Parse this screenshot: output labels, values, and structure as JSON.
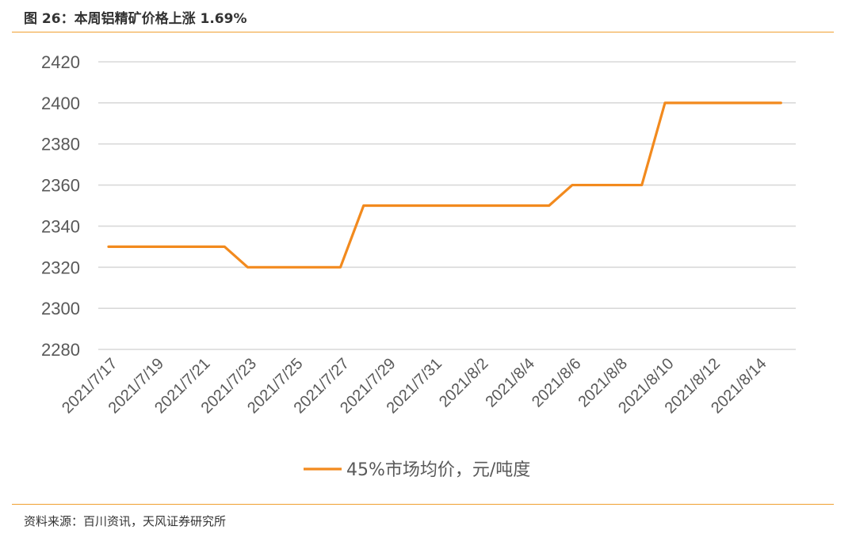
{
  "figure": {
    "title": "图 26：本周铝精矿价格上涨 1.69%",
    "source": "资料来源：百川资讯，天风证券研究所"
  },
  "colors": {
    "accent_rule": "#f0a030",
    "series_line": "#f28a1e",
    "grid": "#d9d9d9",
    "tick_text": "#595959"
  },
  "chart_data": {
    "type": "line",
    "x": [
      "2021/7/17",
      "2021/7/18",
      "2021/7/19",
      "2021/7/20",
      "2021/7/21",
      "2021/7/22",
      "2021/7/23",
      "2021/7/24",
      "2021/7/25",
      "2021/7/26",
      "2021/7/27",
      "2021/7/28",
      "2021/7/29",
      "2021/7/30",
      "2021/7/31",
      "2021/8/1",
      "2021/8/2",
      "2021/8/3",
      "2021/8/4",
      "2021/8/5",
      "2021/8/6",
      "2021/8/7",
      "2021/8/8",
      "2021/8/9",
      "2021/8/10",
      "2021/8/11",
      "2021/8/12",
      "2021/8/13",
      "2021/8/14",
      "2021/8/15"
    ],
    "x_tick_labels": [
      "2021/7/17",
      "2021/7/19",
      "2021/7/21",
      "2021/7/23",
      "2021/7/25",
      "2021/7/27",
      "2021/7/29",
      "2021/7/31",
      "2021/8/2",
      "2021/8/4",
      "2021/8/6",
      "2021/8/8",
      "2021/8/10",
      "2021/8/12",
      "2021/8/14"
    ],
    "y_ticks": [
      2280,
      2300,
      2320,
      2340,
      2360,
      2380,
      2400,
      2420
    ],
    "ylim": [
      2280,
      2420
    ],
    "grid": true,
    "legend_position": "bottom",
    "series": [
      {
        "name": "45%市场均价，元/吨度",
        "values": [
          2330,
          2330,
          2330,
          2330,
          2330,
          2330,
          2320,
          2320,
          2320,
          2320,
          2320,
          2350,
          2350,
          2350,
          2350,
          2350,
          2350,
          2350,
          2350,
          2350,
          2360,
          2360,
          2360,
          2360,
          2400,
          2400,
          2400,
          2400,
          2400,
          2400
        ]
      }
    ]
  }
}
